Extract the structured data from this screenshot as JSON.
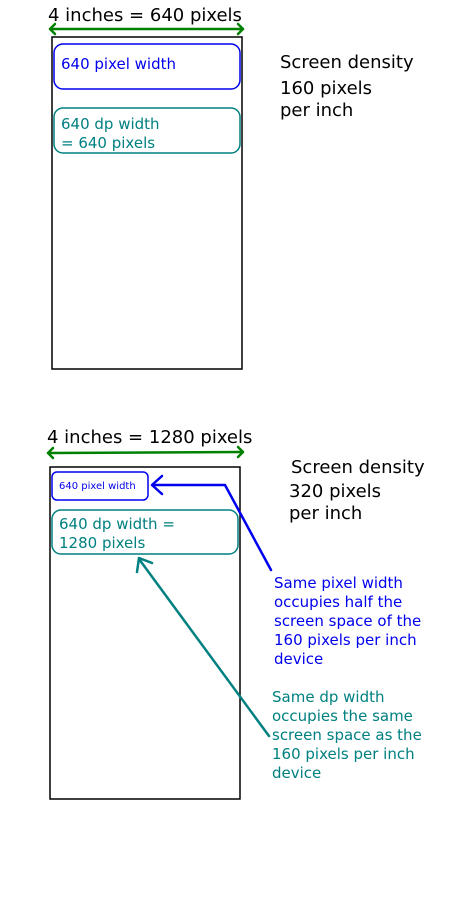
{
  "colors": {
    "green_arrow": "#008000",
    "blue": "#0000ee",
    "teal": "#008080",
    "black": "#000000"
  },
  "top_device": {
    "dimension_label": "4 inches = 640 pixels",
    "pixel_box_label": "640 pixel width",
    "dp_box_label_line1": "640 dp width",
    "dp_box_label_line2": "= 640 pixels",
    "density_line1": "Screen density",
    "density_line2": "160 pixels",
    "density_line3": "per inch"
  },
  "bottom_device": {
    "dimension_label": "4 inches = 1280 pixels",
    "pixel_box_label": "640 pixel width",
    "dp_box_label_line1": "640 dp width =",
    "dp_box_label_line2": "1280 pixels",
    "density_line1": "Screen density",
    "density_line2": "320 pixels",
    "density_line3": "per inch"
  },
  "annotations": {
    "pixel_note": [
      "Same pixel width",
      "occupies half the",
      "screen space of the",
      "160 pixels per inch",
      "device"
    ],
    "dp_note": [
      "Same dp width",
      "occupies the same",
      "screen space as the",
      "160 pixels per inch",
      "device"
    ]
  }
}
